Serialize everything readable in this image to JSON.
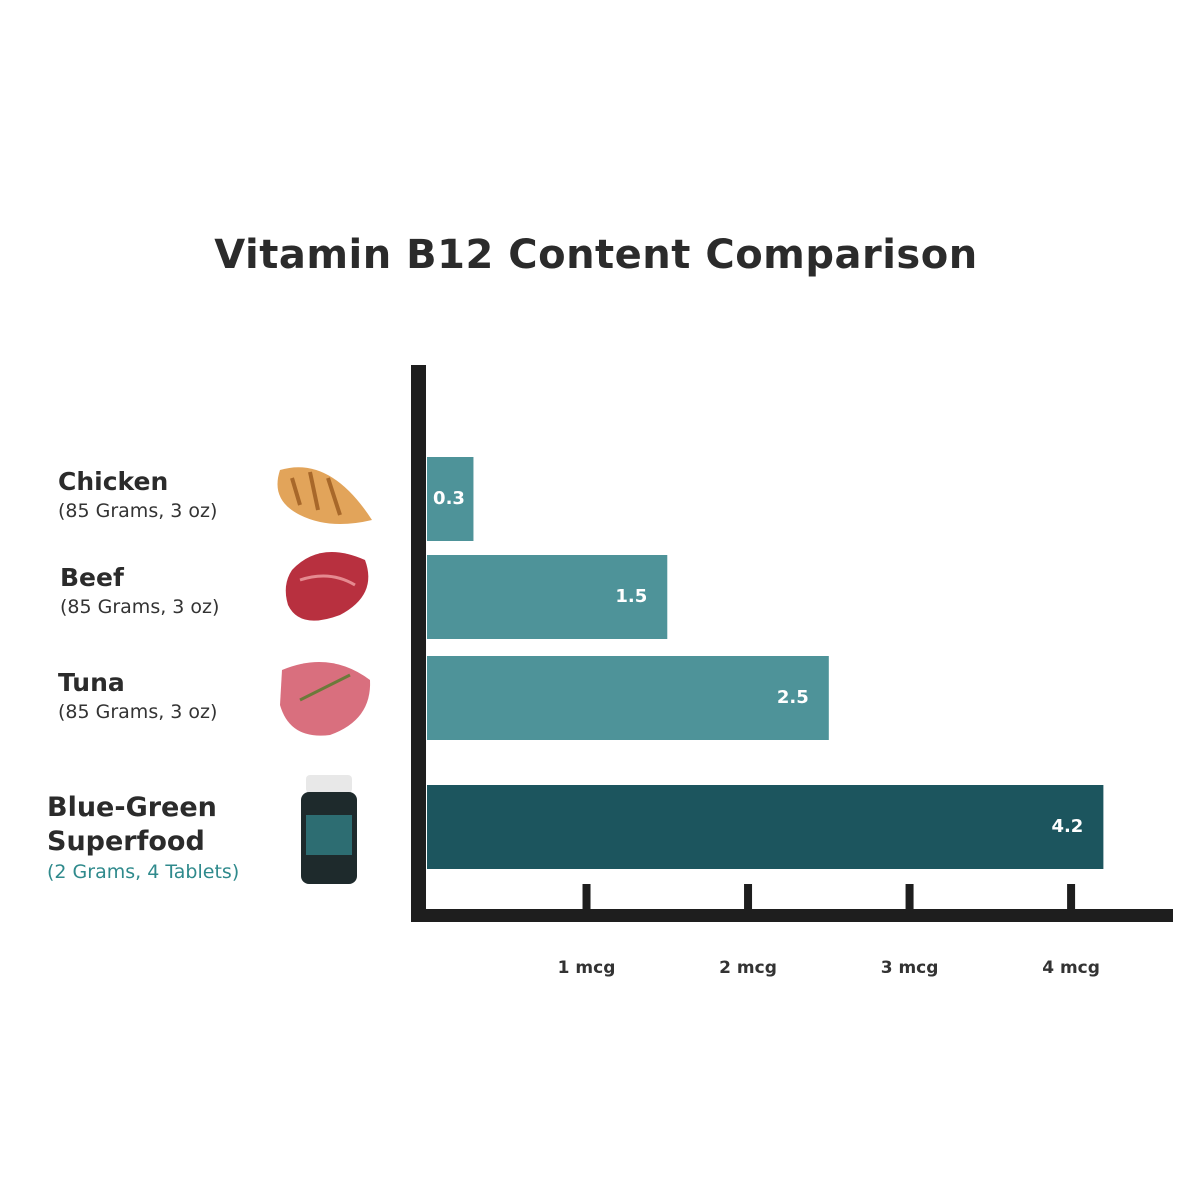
{
  "chart_data": {
    "type": "bar",
    "orientation": "horizontal",
    "title": "Vitamin B12 Content Comparison",
    "categories": [
      "Chicken",
      "Beef",
      "Tuna",
      "Blue-Green Superfood"
    ],
    "sublabels": [
      "(85 Grams, 3 oz)",
      "(85 Grams, 3 oz)",
      "(85 Grams, 3 oz)",
      "(2 Grams, 4 Tablets)"
    ],
    "values": [
      0.3,
      1.5,
      2.5,
      4.2
    ],
    "colors": [
      "#4e9399",
      "#4e9399",
      "#4e9399",
      "#1c555e"
    ],
    "xlim": [
      0,
      4.6
    ],
    "xticks": [
      {
        "value": 1,
        "label": "1 mcg"
      },
      {
        "value": 2,
        "label": "2 mcg"
      },
      {
        "value": 3,
        "label": "3 mcg"
      },
      {
        "value": 4,
        "label": "4 mcg"
      }
    ],
    "grid": false
  }
}
